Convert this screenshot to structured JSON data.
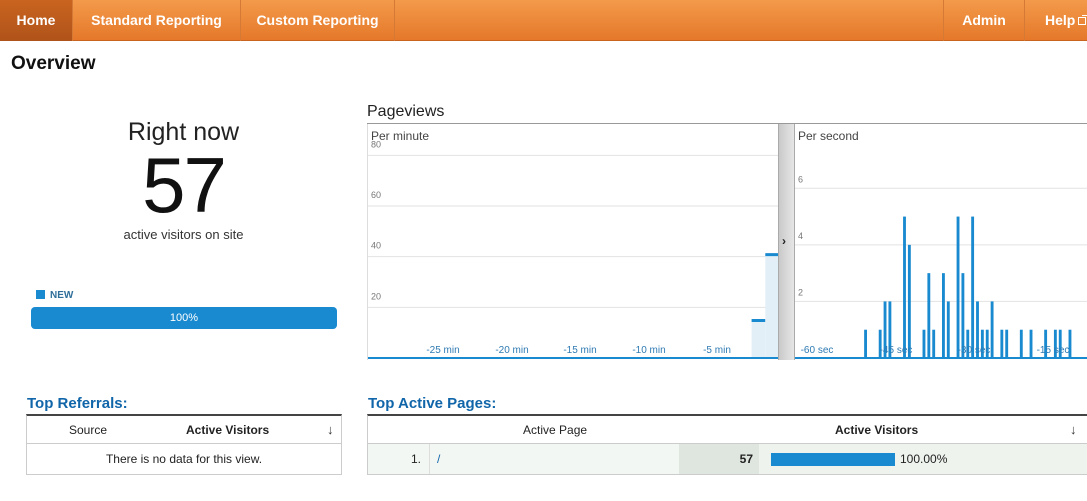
{
  "nav": {
    "home": "Home",
    "standard": "Standard Reporting",
    "custom": "Custom Reporting",
    "admin": "Admin",
    "help": "Help"
  },
  "page_title": "Overview",
  "right_now": {
    "label": "Right now",
    "count": "57",
    "sub": "active visitors on site",
    "legend": "NEW",
    "new_percent_label": "100%",
    "new_fraction": 1.0
  },
  "pageviews": {
    "title": "Pageviews",
    "minute_title": "Per minute",
    "second_title": "Per second"
  },
  "chart_data": [
    {
      "type": "bar",
      "title": "Per minute",
      "y_ticks": [
        "80",
        "60",
        "40",
        "20"
      ],
      "ylim": [
        0,
        90
      ],
      "x_ticks": [
        "-25 min",
        "-20 min",
        "-15 min",
        "-10 min",
        "-5 min"
      ],
      "values": [
        0,
        0,
        0,
        0,
        0,
        0,
        0,
        0,
        0,
        0,
        0,
        0,
        0,
        0,
        0,
        0,
        0,
        0,
        0,
        0,
        0,
        0,
        0,
        0,
        0,
        0,
        0,
        0,
        15,
        41
      ]
    },
    {
      "type": "bar",
      "title": "Per second",
      "y_ticks": [
        "6",
        "4",
        "2"
      ],
      "ylim": [
        0,
        7
      ],
      "x_ticks": [
        "-60 sec",
        "-45 sec",
        "-30 sec",
        "-15 sec"
      ],
      "values": [
        0,
        0,
        0,
        0,
        0,
        0,
        0,
        0,
        0,
        0,
        0,
        0,
        0,
        0,
        1,
        0,
        0,
        1,
        2,
        2,
        0,
        0,
        5,
        4,
        0,
        0,
        1,
        3,
        1,
        0,
        3,
        2,
        0,
        5,
        3,
        1,
        5,
        2,
        1,
        1,
        2,
        0,
        1,
        1,
        0,
        0,
        1,
        0,
        1,
        0,
        0,
        1,
        0,
        1,
        1,
        0,
        1,
        0,
        0,
        0
      ]
    }
  ],
  "top_referrals": {
    "heading": "Top Referrals:",
    "col_source": "Source",
    "col_visitors": "Active Visitors",
    "empty": "There is no data for this view."
  },
  "top_active_pages": {
    "heading": "Top Active Pages:",
    "col_page": "Active Page",
    "col_visitors": "Active Visitors",
    "rows": [
      {
        "rank": "1.",
        "page": "/",
        "visitors": "57",
        "percent": "100.00%",
        "fraction": 1.0
      }
    ]
  },
  "colors": {
    "nav": "#e98531",
    "accent": "#1a8ad0",
    "heading": "#1166aa"
  }
}
